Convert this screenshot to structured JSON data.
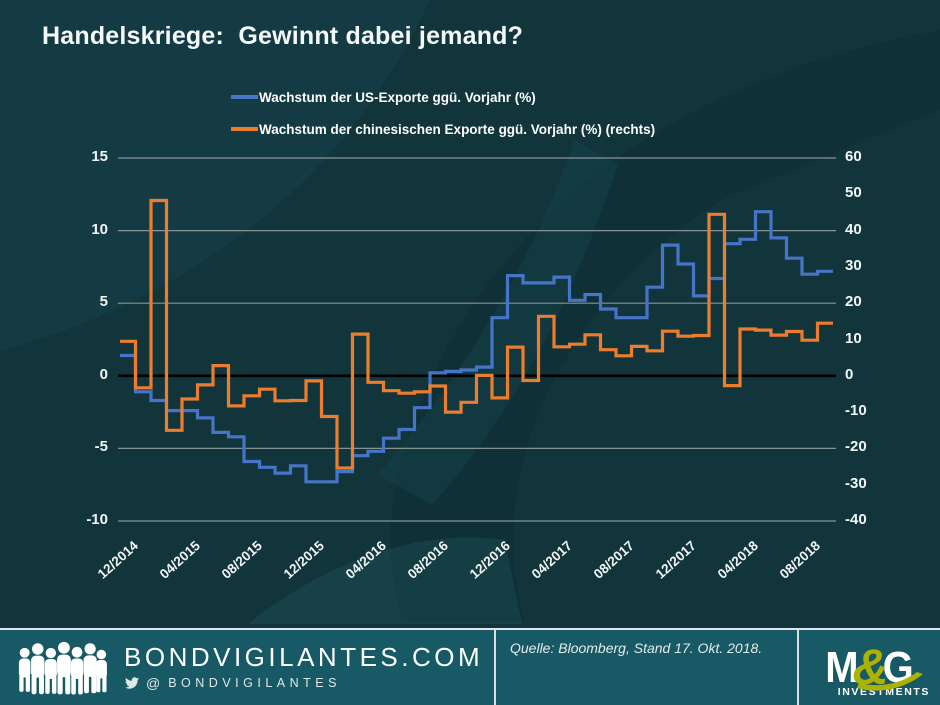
{
  "page": {
    "bg": "#12353c",
    "footer_bg": "#175a65",
    "accent_blue": "#4674c6",
    "accent_orange": "#ec7d2d",
    "olive": "#abb203"
  },
  "title": "Handelskriege:  Gewinnt dabei jemand?",
  "legend": [
    {
      "label": "Wachstum der US-Exporte ggü. Vorjahr (%)",
      "color": "#4674c6"
    },
    {
      "label": "Wachstum der chinesischen Exporte ggü. Vorjahr (%) (rechts)",
      "color": "#ec7d2d"
    }
  ],
  "chart_data": {
    "type": "line",
    "step": true,
    "title": "Handelskriege: Gewinnt dabei jemand?",
    "start_month": "12/2014",
    "end_month": "09/2018",
    "n_months": 46,
    "tick_interval_months": 4,
    "x_tick_labels": [
      "12/2014",
      "04/2015",
      "08/2015",
      "12/2015",
      "04/2016",
      "08/2016",
      "12/2016",
      "04/2017",
      "08/2017",
      "12/2017",
      "04/2018",
      "08/2018"
    ],
    "left_axis": {
      "ticks": [
        15,
        10,
        5,
        0,
        -5,
        -10
      ],
      "range": [
        -10,
        15
      ]
    },
    "right_axis": {
      "ticks": [
        60,
        50,
        40,
        30,
        20,
        10,
        0,
        -10,
        -20,
        -30,
        -40
      ],
      "range": [
        -40,
        60
      ]
    },
    "grid": "horizontal",
    "grid_color": "#9ba4a4",
    "zero_line": true,
    "zero_line_color": "#000000",
    "legend_position": "top",
    "series": [
      {
        "name": "Wachstum der US-Exporte ggü. Vorjahr (%)",
        "axis": "left",
        "color": "#4674c6",
        "values": [
          1.4,
          -1.1,
          -1.7,
          -2.4,
          -2.4,
          -2.9,
          -3.9,
          -4.2,
          -5.9,
          -6.3,
          -6.7,
          -6.2,
          -7.3,
          -7.3,
          -6.6,
          -5.5,
          -5.2,
          -4.3,
          -3.7,
          -2.2,
          0.2,
          0.3,
          0.4,
          0.6,
          4.0,
          6.9,
          6.4,
          6.4,
          6.8,
          5.2,
          5.6,
          4.6,
          4.0,
          4.0,
          6.1,
          9.0,
          7.7,
          5.5,
          6.7,
          9.1,
          9.4,
          11.3,
          9.5,
          8.1,
          7.0,
          7.2
        ]
      },
      {
        "name": "Wachstum der chinesischen Exporte ggü. Vorjahr (%) (rechts)",
        "axis": "right",
        "color": "#ec7d2d",
        "values": [
          9.5,
          -3.3,
          48.3,
          -15.0,
          -6.4,
          -2.5,
          2.8,
          -8.3,
          -5.5,
          -3.7,
          -6.9,
          -6.8,
          -1.4,
          -11.2,
          -25.4,
          11.5,
          -1.8,
          -4.1,
          -4.8,
          -4.4,
          -2.8,
          -10.0,
          -7.3,
          0.1,
          -6.1,
          7.9,
          -1.3,
          16.4,
          8.0,
          8.7,
          11.3,
          7.2,
          5.5,
          8.1,
          6.9,
          12.3,
          10.9,
          11.1,
          44.5,
          -2.7,
          12.9,
          12.6,
          11.2,
          12.2,
          9.8,
          14.5
        ]
      }
    ]
  },
  "footer": {
    "site": "BONDVIGILANTES.COM",
    "twitter_at": "@",
    "twitter_handle": "BONDVIGILANTES",
    "source": "Quelle: Bloomberg, Stand 17. Okt. 2018.",
    "brand": {
      "m": "M",
      "amp": "&",
      "g": "G",
      "sub": "INVESTMENTS"
    }
  }
}
